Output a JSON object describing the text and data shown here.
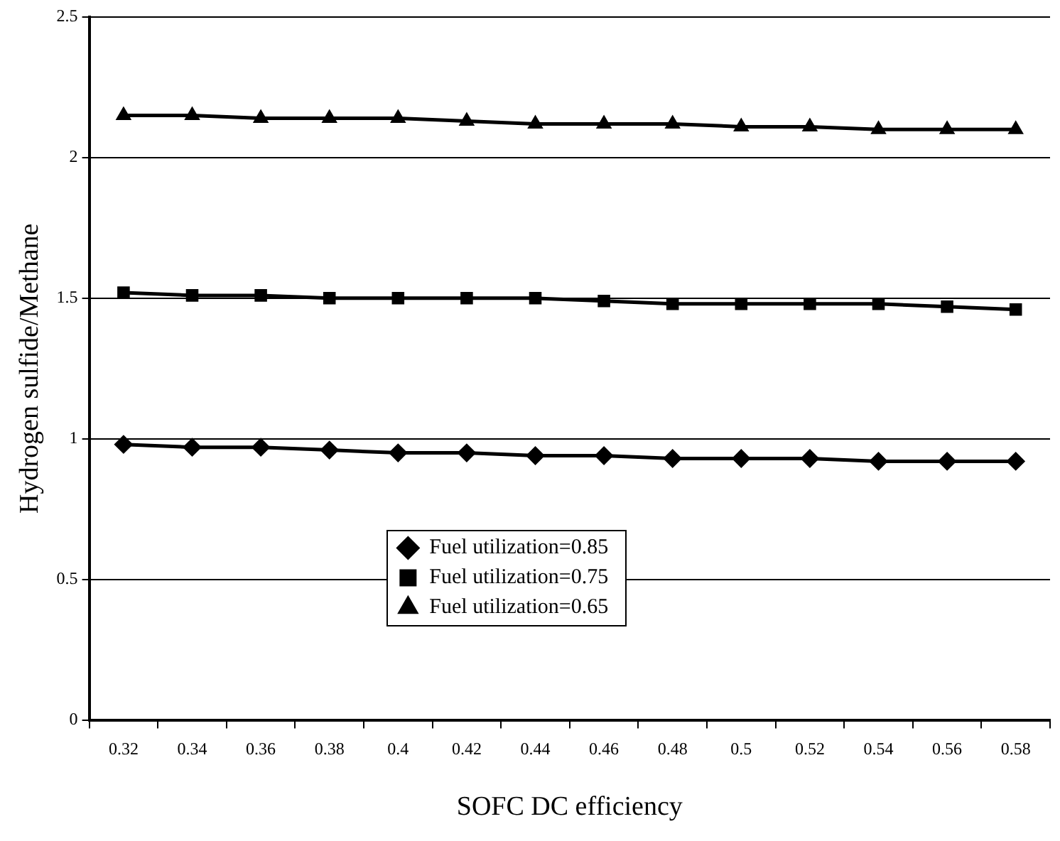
{
  "chart_data": {
    "type": "line",
    "xlabel": "SOFC DC efficiency",
    "ylabel": "Hydrogen sulfide/Methane",
    "categories": [
      "0.32",
      "0.34",
      "0.36",
      "0.38",
      "0.4",
      "0.42",
      "0.44",
      "0.46",
      "0.48",
      "0.5",
      "0.52",
      "0.54",
      "0.56",
      "0.58"
    ],
    "series": [
      {
        "name": "Fuel utilization=0.85",
        "color": "#000000",
        "marker": "diamond",
        "values": [
          0.98,
          0.97,
          0.97,
          0.96,
          0.95,
          0.95,
          0.94,
          0.94,
          0.93,
          0.93,
          0.93,
          0.92,
          0.92,
          0.92
        ]
      },
      {
        "name": "Fuel utilization=0.75",
        "color": "#000000",
        "marker": "square",
        "values": [
          1.52,
          1.51,
          1.51,
          1.5,
          1.5,
          1.5,
          1.5,
          1.49,
          1.48,
          1.48,
          1.48,
          1.48,
          1.47,
          1.46
        ]
      },
      {
        "name": "Fuel utilization=0.65",
        "color": "#000000",
        "marker": "triangle",
        "values": [
          2.15,
          2.15,
          2.14,
          2.14,
          2.14,
          2.13,
          2.12,
          2.12,
          2.12,
          2.11,
          2.11,
          2.1,
          2.1,
          2.1
        ]
      }
    ],
    "ylim": [
      0,
      2.5
    ],
    "yticks": [
      0,
      0.5,
      1,
      1.5,
      2,
      2.5
    ],
    "grid": "y",
    "legend": "bottom",
    "line_style": "solid"
  }
}
